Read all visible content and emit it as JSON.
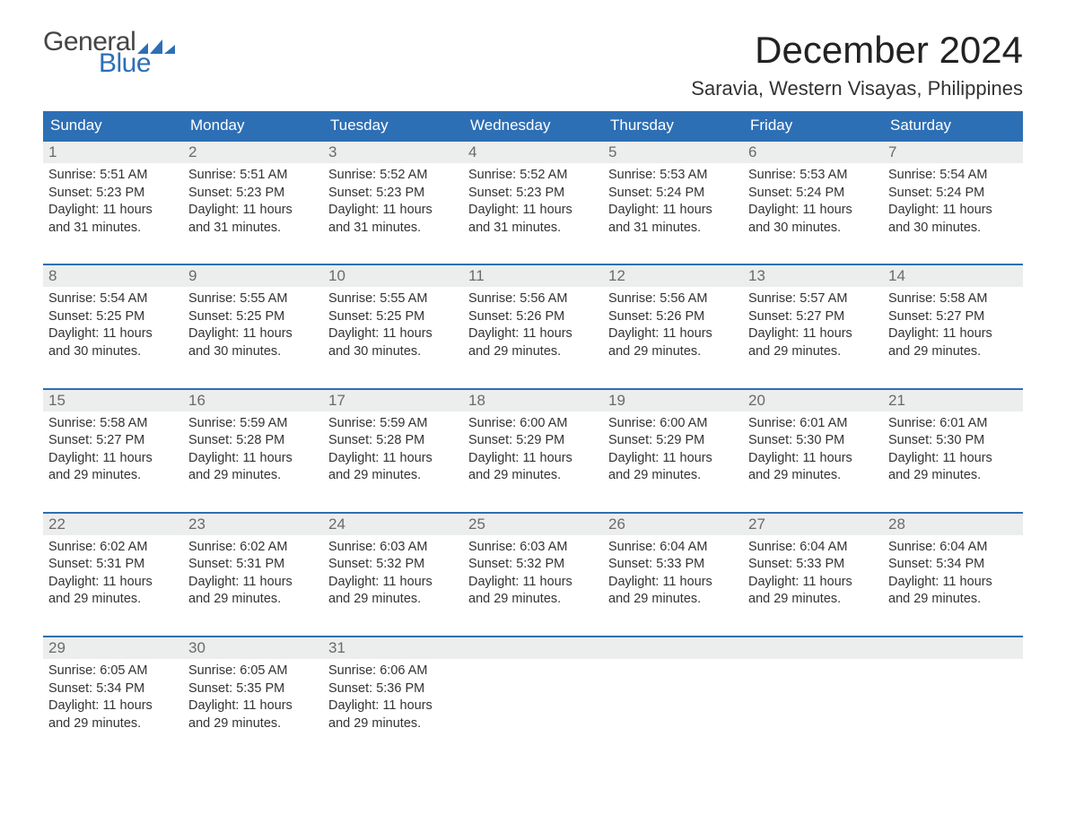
{
  "brand": {
    "word1": "General",
    "word2": "Blue",
    "flag_color": "#2d6fb5"
  },
  "title": "December 2024",
  "location": "Saravia, Western Visayas, Philippines",
  "colors": {
    "header_bg": "#2d6fb5",
    "header_text": "#ffffff",
    "daynum_bg": "#eceded",
    "daynum_text": "#6a6a6a",
    "body_text": "#333333",
    "background": "#ffffff"
  },
  "typography": {
    "title_fontsize": 42,
    "location_fontsize": 22,
    "weekday_fontsize": 17,
    "daynum_fontsize": 17,
    "body_fontsize": 14.5
  },
  "weekdays": [
    "Sunday",
    "Monday",
    "Tuesday",
    "Wednesday",
    "Thursday",
    "Friday",
    "Saturday"
  ],
  "labels": {
    "sunrise": "Sunrise:",
    "sunset": "Sunset:",
    "daylight": "Daylight:"
  },
  "weeks": [
    [
      {
        "n": "1",
        "sr": "5:51 AM",
        "ss": "5:23 PM",
        "dl1": "11 hours",
        "dl2": "and 31 minutes."
      },
      {
        "n": "2",
        "sr": "5:51 AM",
        "ss": "5:23 PM",
        "dl1": "11 hours",
        "dl2": "and 31 minutes."
      },
      {
        "n": "3",
        "sr": "5:52 AM",
        "ss": "5:23 PM",
        "dl1": "11 hours",
        "dl2": "and 31 minutes."
      },
      {
        "n": "4",
        "sr": "5:52 AM",
        "ss": "5:23 PM",
        "dl1": "11 hours",
        "dl2": "and 31 minutes."
      },
      {
        "n": "5",
        "sr": "5:53 AM",
        "ss": "5:24 PM",
        "dl1": "11 hours",
        "dl2": "and 31 minutes."
      },
      {
        "n": "6",
        "sr": "5:53 AM",
        "ss": "5:24 PM",
        "dl1": "11 hours",
        "dl2": "and 30 minutes."
      },
      {
        "n": "7",
        "sr": "5:54 AM",
        "ss": "5:24 PM",
        "dl1": "11 hours",
        "dl2": "and 30 minutes."
      }
    ],
    [
      {
        "n": "8",
        "sr": "5:54 AM",
        "ss": "5:25 PM",
        "dl1": "11 hours",
        "dl2": "and 30 minutes."
      },
      {
        "n": "9",
        "sr": "5:55 AM",
        "ss": "5:25 PM",
        "dl1": "11 hours",
        "dl2": "and 30 minutes."
      },
      {
        "n": "10",
        "sr": "5:55 AM",
        "ss": "5:25 PM",
        "dl1": "11 hours",
        "dl2": "and 30 minutes."
      },
      {
        "n": "11",
        "sr": "5:56 AM",
        "ss": "5:26 PM",
        "dl1": "11 hours",
        "dl2": "and 29 minutes."
      },
      {
        "n": "12",
        "sr": "5:56 AM",
        "ss": "5:26 PM",
        "dl1": "11 hours",
        "dl2": "and 29 minutes."
      },
      {
        "n": "13",
        "sr": "5:57 AM",
        "ss": "5:27 PM",
        "dl1": "11 hours",
        "dl2": "and 29 minutes."
      },
      {
        "n": "14",
        "sr": "5:58 AM",
        "ss": "5:27 PM",
        "dl1": "11 hours",
        "dl2": "and 29 minutes."
      }
    ],
    [
      {
        "n": "15",
        "sr": "5:58 AM",
        "ss": "5:27 PM",
        "dl1": "11 hours",
        "dl2": "and 29 minutes."
      },
      {
        "n": "16",
        "sr": "5:59 AM",
        "ss": "5:28 PM",
        "dl1": "11 hours",
        "dl2": "and 29 minutes."
      },
      {
        "n": "17",
        "sr": "5:59 AM",
        "ss": "5:28 PM",
        "dl1": "11 hours",
        "dl2": "and 29 minutes."
      },
      {
        "n": "18",
        "sr": "6:00 AM",
        "ss": "5:29 PM",
        "dl1": "11 hours",
        "dl2": "and 29 minutes."
      },
      {
        "n": "19",
        "sr": "6:00 AM",
        "ss": "5:29 PM",
        "dl1": "11 hours",
        "dl2": "and 29 minutes."
      },
      {
        "n": "20",
        "sr": "6:01 AM",
        "ss": "5:30 PM",
        "dl1": "11 hours",
        "dl2": "and 29 minutes."
      },
      {
        "n": "21",
        "sr": "6:01 AM",
        "ss": "5:30 PM",
        "dl1": "11 hours",
        "dl2": "and 29 minutes."
      }
    ],
    [
      {
        "n": "22",
        "sr": "6:02 AM",
        "ss": "5:31 PM",
        "dl1": "11 hours",
        "dl2": "and 29 minutes."
      },
      {
        "n": "23",
        "sr": "6:02 AM",
        "ss": "5:31 PM",
        "dl1": "11 hours",
        "dl2": "and 29 minutes."
      },
      {
        "n": "24",
        "sr": "6:03 AM",
        "ss": "5:32 PM",
        "dl1": "11 hours",
        "dl2": "and 29 minutes."
      },
      {
        "n": "25",
        "sr": "6:03 AM",
        "ss": "5:32 PM",
        "dl1": "11 hours",
        "dl2": "and 29 minutes."
      },
      {
        "n": "26",
        "sr": "6:04 AM",
        "ss": "5:33 PM",
        "dl1": "11 hours",
        "dl2": "and 29 minutes."
      },
      {
        "n": "27",
        "sr": "6:04 AM",
        "ss": "5:33 PM",
        "dl1": "11 hours",
        "dl2": "and 29 minutes."
      },
      {
        "n": "28",
        "sr": "6:04 AM",
        "ss": "5:34 PM",
        "dl1": "11 hours",
        "dl2": "and 29 minutes."
      }
    ],
    [
      {
        "n": "29",
        "sr": "6:05 AM",
        "ss": "5:34 PM",
        "dl1": "11 hours",
        "dl2": "and 29 minutes."
      },
      {
        "n": "30",
        "sr": "6:05 AM",
        "ss": "5:35 PM",
        "dl1": "11 hours",
        "dl2": "and 29 minutes."
      },
      {
        "n": "31",
        "sr": "6:06 AM",
        "ss": "5:36 PM",
        "dl1": "11 hours",
        "dl2": "and 29 minutes."
      },
      null,
      null,
      null,
      null
    ]
  ]
}
